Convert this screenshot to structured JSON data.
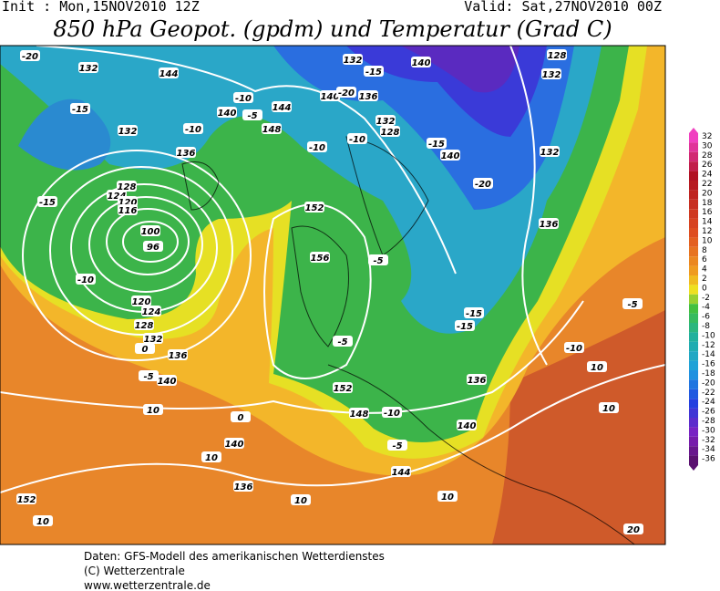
{
  "header": {
    "init": "Init : Mon,15NOV2010 12Z",
    "valid": "Valid: Sat,27NOV2010 00Z",
    "title": "850 hPa Geopot. (gpdm) und Temperatur (Grad C)"
  },
  "colorbar": {
    "labels": [
      32,
      30,
      28,
      26,
      24,
      22,
      20,
      18,
      16,
      14,
      12,
      10,
      8,
      6,
      4,
      2,
      0,
      -2,
      -4,
      -6,
      -8,
      -10,
      -12,
      -14,
      -16,
      -18,
      -20,
      -22,
      -24,
      -26,
      -28,
      -30,
      -32,
      -34,
      -36
    ]
  },
  "map": {
    "contour_labels": [
      -20,
      132,
      144,
      -15,
      132,
      -10,
      140,
      -10,
      -5,
      144,
      148,
      136,
      140,
      -20,
      132,
      -15,
      140,
      136,
      132,
      128,
      -10,
      -10,
      -15,
      140,
      -20,
      128,
      132,
      132,
      136,
      128,
      124,
      120,
      116,
      100,
      96,
      -10,
      -15,
      152,
      156,
      -5,
      -5,
      -15,
      -15,
      -5,
      -10,
      10,
      10,
      120,
      124,
      128,
      132,
      0,
      136,
      140,
      -5,
      152,
      148,
      -10,
      140,
      136,
      144,
      -5,
      10,
      0,
      140,
      10,
      136,
      10,
      10,
      152,
      10,
      20
    ]
  },
  "footer": [
    "Daten: GFS-Modell des amerikanischen Wetterdienstes",
    "(C) Wetterzentrale",
    "www.wetterzentrale.de"
  ]
}
